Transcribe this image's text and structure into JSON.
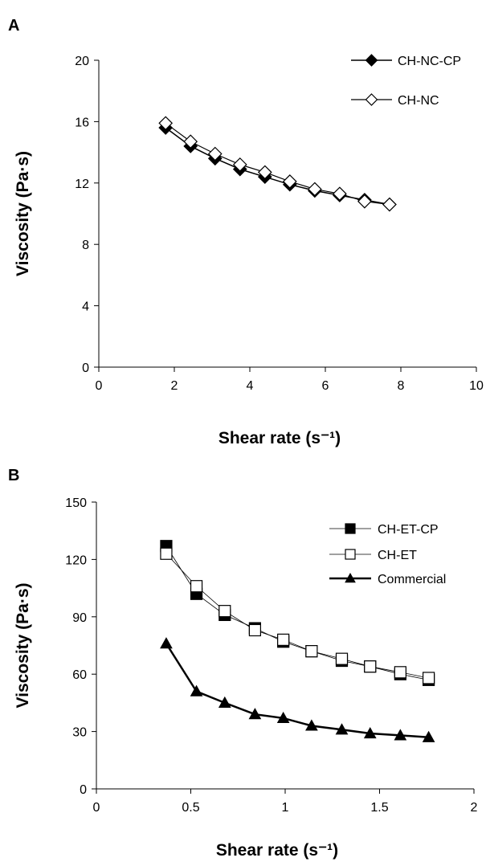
{
  "chart_data": [
    {
      "panel": "A",
      "type": "line",
      "xlabel": "Shear rate (s⁻¹)",
      "ylabel": "Viscosity (Pa·s)",
      "xlim": [
        0,
        10
      ],
      "ylim": [
        0,
        20
      ],
      "xticks": [
        0,
        2,
        4,
        6,
        8,
        10
      ],
      "yticks": [
        0,
        4,
        8,
        12,
        16,
        20
      ],
      "legend_position": "top-right",
      "grid": false,
      "series": [
        {
          "name": "CH-NC-CP",
          "marker": "diamond-filled",
          "color": "#000000",
          "x": [
            1.77,
            2.43,
            3.08,
            3.74,
            4.4,
            5.06,
            5.72,
            6.38,
            7.04,
            7.7
          ],
          "y": [
            15.6,
            14.4,
            13.6,
            12.9,
            12.4,
            11.9,
            11.5,
            11.2,
            10.9,
            10.6
          ]
        },
        {
          "name": "CH-NC",
          "marker": "diamond-open",
          "color": "#000000",
          "x": [
            1.77,
            2.43,
            3.08,
            3.74,
            4.4,
            5.06,
            5.72,
            6.38,
            7.04,
            7.7
          ],
          "y": [
            15.9,
            14.7,
            13.9,
            13.2,
            12.7,
            12.1,
            11.6,
            11.3,
            10.8,
            10.6
          ]
        }
      ]
    },
    {
      "panel": "B",
      "type": "line",
      "xlabel": "Shear rate (s⁻¹)",
      "ylabel": "Viscosity (Pa·s)",
      "xlim": [
        0,
        2
      ],
      "ylim": [
        0,
        150
      ],
      "xticks": [
        0,
        0.5,
        1,
        1.5,
        2
      ],
      "yticks": [
        0,
        30,
        60,
        90,
        120,
        150
      ],
      "legend_position": "top-right",
      "grid": false,
      "series": [
        {
          "name": "CH-ET-CP",
          "marker": "square-filled",
          "color": "#000000",
          "x": [
            0.37,
            0.53,
            0.68,
            0.84,
            0.99,
            1.14,
            1.3,
            1.45,
            1.61,
            1.76
          ],
          "y": [
            127,
            102,
            91,
            84,
            77,
            72,
            67,
            64,
            60,
            57
          ]
        },
        {
          "name": "CH-ET",
          "marker": "square-open",
          "color": "#000000",
          "x": [
            0.37,
            0.53,
            0.68,
            0.84,
            0.99,
            1.14,
            1.3,
            1.45,
            1.61,
            1.76
          ],
          "y": [
            123,
            106,
            93,
            83,
            78,
            72,
            68,
            64,
            61,
            58
          ]
        },
        {
          "name": "Commercial",
          "marker": "triangle-filled",
          "color": "#000000",
          "x": [
            0.37,
            0.53,
            0.68,
            0.84,
            0.99,
            1.14,
            1.3,
            1.45,
            1.61,
            1.76
          ],
          "y": [
            76,
            51,
            45,
            39,
            37,
            33,
            31,
            29,
            28,
            27
          ]
        }
      ]
    }
  ]
}
